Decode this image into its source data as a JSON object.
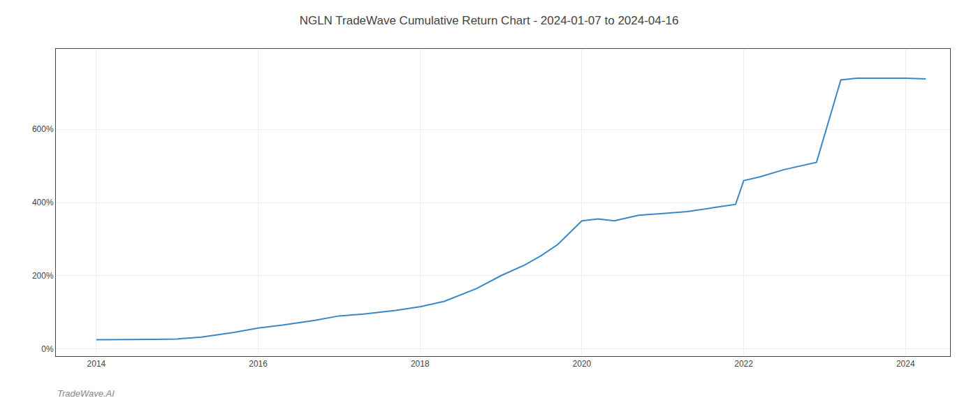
{
  "chart_data": {
    "type": "line",
    "title": "NGLN TradeWave Cumulative Return Chart - 2024-01-07 to 2024-04-16",
    "annotations": [
      {
        "text": "TradeWave.AI"
      }
    ],
    "x": [
      2014.0,
      2014.3,
      2014.7,
      2015.0,
      2015.3,
      2015.7,
      2016.0,
      2016.3,
      2016.7,
      2017.0,
      2017.3,
      2017.7,
      2018.0,
      2018.3,
      2018.7,
      2019.0,
      2019.3,
      2019.5,
      2019.7,
      2020.0,
      2020.2,
      2020.4,
      2020.7,
      2021.0,
      2021.3,
      2021.6,
      2021.9,
      2022.0,
      2022.2,
      2022.5,
      2022.7,
      2022.9,
      2023.1,
      2023.2,
      2023.4,
      2023.6,
      2023.8,
      2024.0,
      2024.25
    ],
    "values": [
      25,
      25,
      26,
      27,
      32,
      45,
      57,
      65,
      78,
      90,
      95,
      105,
      115,
      130,
      165,
      200,
      230,
      255,
      285,
      350,
      355,
      350,
      365,
      370,
      375,
      385,
      395,
      460,
      470,
      490,
      500,
      510,
      660,
      735,
      740,
      740,
      740,
      740,
      738
    ],
    "color": "#3a87c8",
    "xlim": [
      2013.5,
      2024.55
    ],
    "xticks": [
      2014,
      2016,
      2018,
      2020,
      2022,
      2024
    ],
    "ylim": [
      -20,
      820
    ],
    "yticks": [
      {
        "value": 0,
        "label": "0%"
      },
      {
        "value": 200,
        "label": "200%"
      },
      {
        "value": 400,
        "label": "400%"
      },
      {
        "value": 600,
        "label": "600%"
      }
    ],
    "grid": true
  }
}
